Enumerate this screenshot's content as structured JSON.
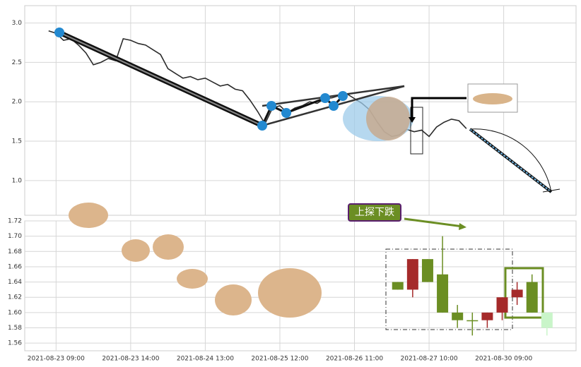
{
  "chart_data": [
    {
      "type": "line",
      "x": [
        -0.1,
        0.0,
        0.1,
        0.2,
        0.3,
        0.4,
        0.5,
        0.6,
        0.7,
        0.8,
        0.9,
        1.0,
        1.1,
        1.2,
        1.3,
        1.4,
        1.5,
        1.6,
        1.7,
        1.8,
        1.9,
        2.0,
        2.1,
        2.2,
        2.3,
        2.4,
        2.5,
        2.6,
        2.7,
        2.8,
        2.9,
        3.0,
        3.1,
        3.2,
        3.3,
        3.4,
        3.5,
        3.6,
        3.7,
        3.8,
        3.9,
        4.0,
        4.1,
        4.2,
        4.3,
        4.4,
        4.5,
        4.6,
        4.7,
        4.8,
        4.9,
        5.0,
        5.1,
        5.2,
        5.3,
        5.4,
        5.5
      ],
      "values": [
        2.9,
        2.87,
        2.78,
        2.8,
        2.72,
        2.62,
        2.47,
        2.5,
        2.55,
        2.52,
        2.8,
        2.78,
        2.74,
        2.72,
        2.66,
        2.6,
        2.42,
        2.36,
        2.3,
        2.32,
        2.28,
        2.3,
        2.25,
        2.2,
        2.22,
        2.16,
        2.14,
        2.02,
        1.88,
        1.72,
        1.92,
        1.95,
        1.86,
        1.92,
        1.95,
        2.0,
        1.98,
        2.04,
        2.05,
        2.08,
        2.1,
        2.04,
        1.98,
        1.9,
        1.75,
        1.62,
        1.56,
        1.58,
        1.65,
        1.62,
        1.64,
        1.56,
        1.68,
        1.74,
        1.78,
        1.76,
        1.66
      ],
      "color": "#2b2b2b",
      "xlim": [
        -0.42,
        6.97
      ],
      "ylim": [
        0.56,
        3.22
      ],
      "yticks": [
        {
          "value": 3.0,
          "label": "3.0"
        },
        2.5,
        {
          "value": 2.0,
          "label": "2.0"
        },
        1.5,
        {
          "value": 1.0,
          "label": "1.0"
        }
      ],
      "grid": true
    },
    {
      "type": "candlestick",
      "x": [
        4.58,
        4.78,
        4.98,
        5.18,
        5.38,
        5.58,
        5.78,
        5.98,
        6.18,
        6.38,
        6.58
      ],
      "open": [
        1.63,
        1.63,
        1.67,
        1.65,
        1.6,
        1.59,
        1.59,
        1.6,
        1.62,
        1.64,
        1.6
      ],
      "high": [
        1.64,
        1.67,
        1.67,
        1.7,
        1.61,
        1.6,
        1.6,
        1.62,
        1.64,
        1.65,
        1.6
      ],
      "low": [
        1.63,
        1.62,
        1.64,
        1.6,
        1.58,
        1.57,
        1.58,
        1.59,
        1.61,
        1.6,
        1.57
      ],
      "close": [
        1.64,
        1.67,
        1.64,
        1.6,
        1.59,
        1.59,
        1.6,
        1.62,
        1.63,
        1.6,
        1.58
      ],
      "colors": [
        "#6b8e23",
        "#a52a2a",
        "#6b8e23",
        "#6b8e23",
        "#6b8e23",
        "#6b8e23",
        "#a52a2a",
        "#a52a2a",
        "#a52a2a",
        "#6b8e23",
        "#c9f5c9"
      ],
      "xlim": [
        -0.42,
        6.97
      ],
      "ylim": [
        1.55,
        1.72
      ],
      "xticks": [
        {
          "value": 0,
          "label": "2021-08-23 09:00"
        },
        {
          "value": 1,
          "label": "2021-08-23 14:00"
        },
        {
          "value": 2,
          "label": "2021-08-24 13:00"
        },
        {
          "value": 3,
          "label": "2021-08-25 12:00"
        },
        {
          "value": 4,
          "label": "2021-08-26 11:00"
        },
        {
          "value": 5,
          "label": "2021-08-27 10:00"
        },
        {
          "value": 6,
          "label": "2021-08-30 09:00"
        }
      ],
      "yticks": [
        {
          "value": 1.56,
          "label": "1.56"
        },
        {
          "value": 1.58,
          "label": "1.58"
        },
        {
          "value": 1.6,
          "label": "1.60"
        },
        {
          "value": 1.62,
          "label": "1.62"
        },
        {
          "value": 1.64,
          "label": "1.64"
        },
        {
          "value": 1.66,
          "label": "1.66"
        },
        {
          "value": 1.68,
          "label": "1.68"
        },
        {
          "value": 1.7,
          "label": "1.70"
        },
        {
          "value": 1.72,
          "label": "1.72"
        }
      ],
      "annotation": "上探下跌",
      "grid": true
    }
  ]
}
